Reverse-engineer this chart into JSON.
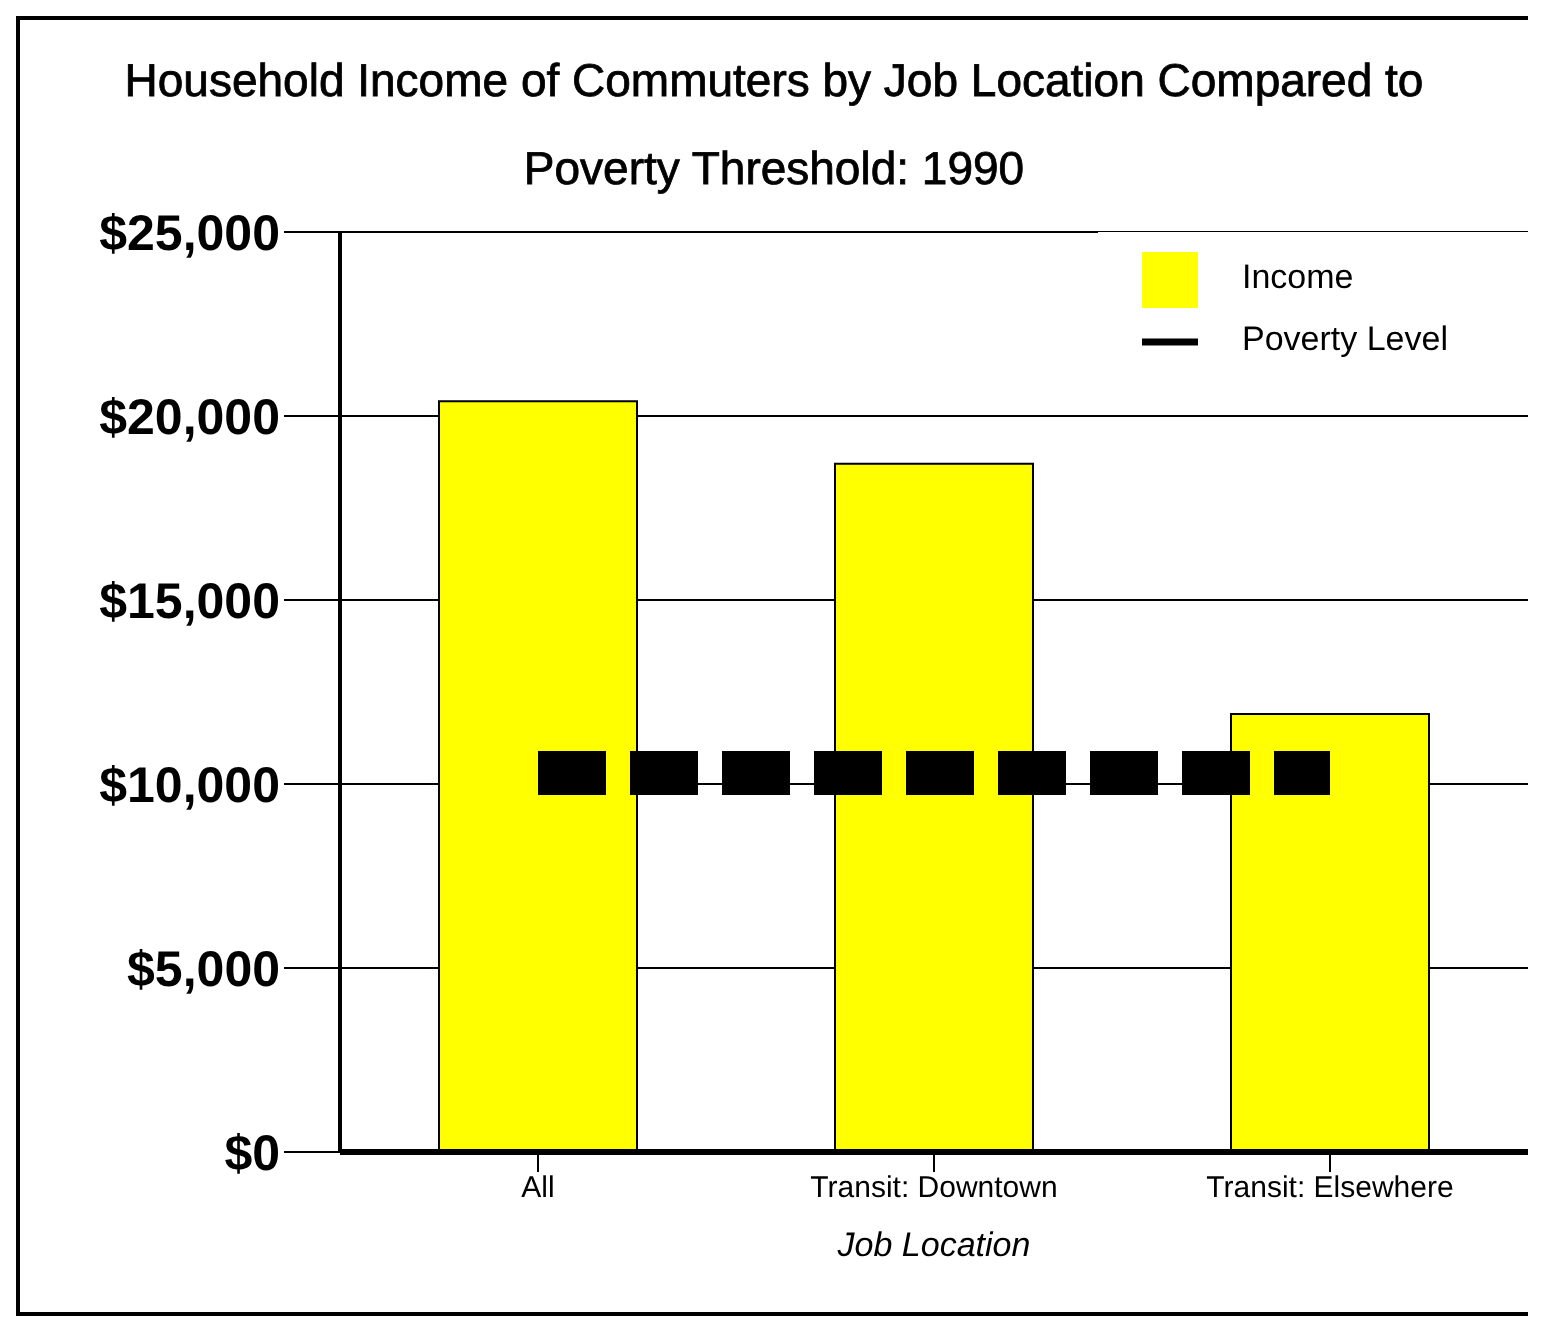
{
  "chart_data": {
    "type": "bar",
    "title": "Household Income of Commuters by Job Location Compared to Poverty Threshold: 1990",
    "xlabel": "Job Location",
    "categories": [
      "All",
      "Transit: Downtown",
      "Transit: Elsewhere"
    ],
    "series": [
      {
        "name": "Income",
        "color": "#ffff00",
        "values": [
          20400,
          18700,
          11900
        ]
      },
      {
        "name": "Poverty Level",
        "type": "line",
        "line_style": "dashed",
        "color": "#000000",
        "values": [
          10300,
          10300,
          10300
        ]
      }
    ],
    "ylim": [
      0,
      25000
    ],
    "yticks": [
      {
        "value": 0,
        "label": "$0"
      },
      {
        "value": 5000,
        "label": "$5,000"
      },
      {
        "value": 10000,
        "label": "$10,000"
      },
      {
        "value": 15000,
        "label": "$15,000"
      },
      {
        "value": 20000,
        "label": "$20,000"
      },
      {
        "value": 25000,
        "label": "$25,000"
      }
    ],
    "grid": "y",
    "legend": "top right"
  }
}
